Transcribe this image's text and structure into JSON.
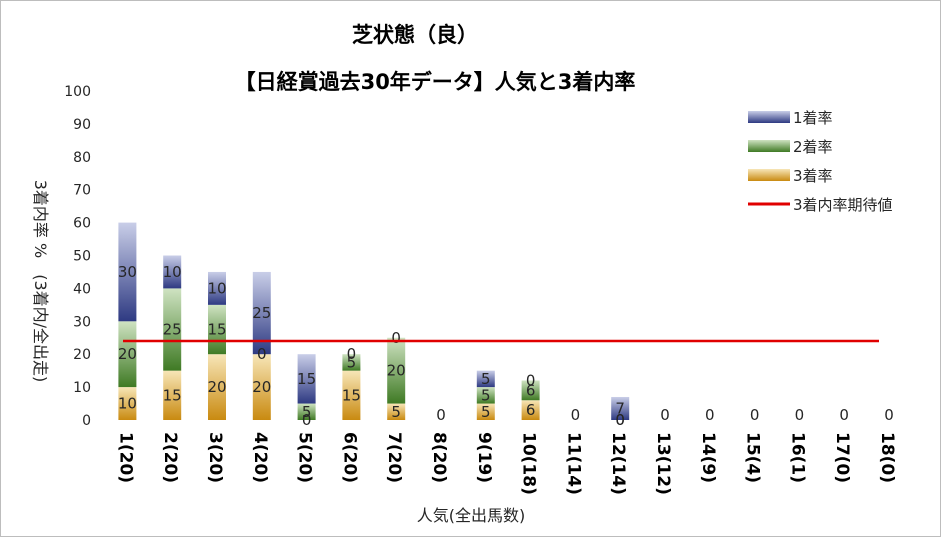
{
  "chart_data": {
    "type": "bar",
    "title": "芝状態（良）",
    "subtitle": "【日経賞過去30年データ】人気と3着内率",
    "xlabel": "人気(全出馬数)",
    "ylabel": "3着内率 %　(3着内/全出走)",
    "ylim": [
      0,
      100
    ],
    "yticks": [
      0,
      10,
      20,
      30,
      40,
      50,
      60,
      70,
      80,
      90,
      100
    ],
    "categories": [
      "1(20)",
      "2(20)",
      "3(20)",
      "4(20)",
      "5(20)",
      "6(20)",
      "7(20)",
      "8(20)",
      "9(19)",
      "10(18)",
      "11(14)",
      "12(14)",
      "13(12)",
      "14(9)",
      "15(4)",
      "16(1)",
      "17(0)",
      "18(0)"
    ],
    "series": [
      {
        "name": "3着率",
        "values": [
          10,
          15,
          20,
          20,
          0,
          15,
          5,
          0,
          5,
          6,
          0,
          0,
          0,
          0,
          0,
          0,
          0,
          0
        ],
        "color": "#e6b43c"
      },
      {
        "name": "2着率",
        "values": [
          20,
          25,
          15,
          0,
          5,
          5,
          20,
          0,
          5,
          6,
          0,
          0,
          0,
          0,
          0,
          0,
          0,
          0
        ],
        "color": "#5f9e3c"
      },
      {
        "name": "1着率",
        "values": [
          30,
          10,
          10,
          25,
          15,
          0,
          0,
          0,
          5,
          0,
          0,
          7,
          0,
          0,
          0,
          0,
          0,
          0
        ],
        "color": "#4a5aa8"
      }
    ],
    "expected_line": {
      "name": "3着内率期待値",
      "value": 24,
      "color": "#e00000"
    },
    "legend_position": "top-right",
    "grid": false
  }
}
